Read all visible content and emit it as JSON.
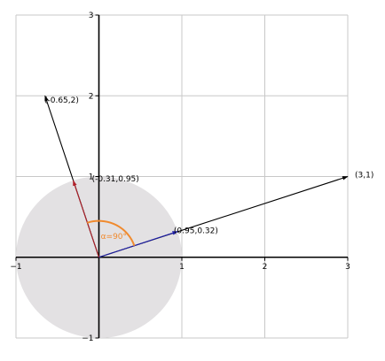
{
  "chart_data": {
    "type": "scatter",
    "title": "",
    "xlabel": "",
    "ylabel": "",
    "xlim": [
      -1,
      3
    ],
    "ylim": [
      -1,
      3
    ],
    "grid": true,
    "x_ticks": [
      "−1",
      "1",
      "2",
      "3"
    ],
    "y_ticks": [
      "−1",
      "1",
      "2",
      "3"
    ],
    "unit_circle": {
      "center": [
        0,
        0
      ],
      "radius": 1,
      "color": "#e3e1e3"
    },
    "vectors": [
      {
        "id": "v-3-1",
        "from": [
          0,
          0
        ],
        "to": [
          3,
          1
        ],
        "color": "#000000",
        "label": "(3,1)",
        "label_at": [
          3.2,
          1.02
        ]
      },
      {
        "id": "v-neg065-2",
        "from": [
          0,
          0
        ],
        "to": [
          -0.65,
          2
        ],
        "color": "#000000",
        "label": "(-0.65,2)",
        "label_at": [
          -0.45,
          1.95
        ]
      },
      {
        "id": "v-095-032",
        "from": [
          0,
          0
        ],
        "to": [
          0.95,
          0.32
        ],
        "color": "#1f1fa8",
        "label": "(0.95,0.32)",
        "label_at": [
          1.17,
          0.33
        ]
      },
      {
        "id": "v-neg031-095",
        "from": [
          0,
          0
        ],
        "to": [
          -0.31,
          0.95
        ],
        "color": "#b0202a",
        "label": "(-0.31,0.95)",
        "label_at": [
          0.2,
          0.97
        ]
      }
    ],
    "angle": {
      "label": "α=90°",
      "color": "#f08a2e",
      "from_deg": 18.4,
      "to_deg": 108.4,
      "radius": 0.45,
      "label_at": [
        0.18,
        0.23
      ]
    }
  }
}
